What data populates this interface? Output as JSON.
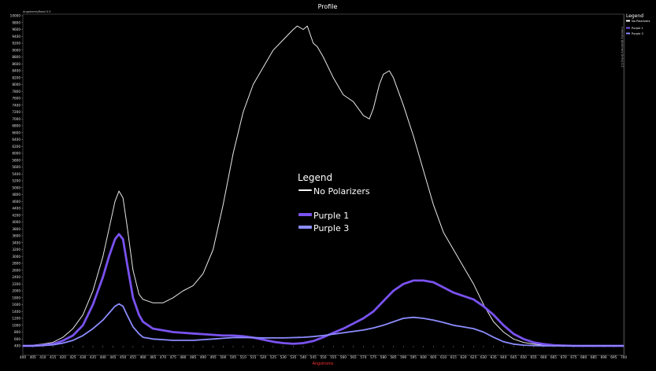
{
  "window": {
    "title": "Profile",
    "status_text": "Angstroms/Read 0.5",
    "right_vertical_text": "Intensity (Arbitrary Units) 4.2"
  },
  "legend_panel": {
    "title": "Legend",
    "items": [
      "No Polarizers",
      "Purple 1",
      "Purple 3"
    ]
  },
  "chart_data": {
    "type": "line",
    "xlabel": "Angstroms",
    "ylabel": "",
    "xlim": [
      400,
      700
    ],
    "ylim": [
      400,
      10000
    ],
    "grid": false,
    "legend_placement": "center",
    "legend_title": "Legend",
    "x_ticks": [
      400,
      405,
      410,
      415,
      420,
      425,
      430,
      435,
      440,
      445,
      450,
      455,
      460,
      465,
      470,
      475,
      480,
      485,
      490,
      495,
      500,
      505,
      510,
      515,
      520,
      525,
      530,
      535,
      540,
      545,
      550,
      555,
      560,
      565,
      570,
      575,
      580,
      585,
      590,
      595,
      600,
      605,
      610,
      615,
      620,
      625,
      630,
      635,
      640,
      645,
      650,
      655,
      660,
      665,
      670,
      675,
      680,
      685,
      690,
      695,
      700
    ],
    "y_ticks": [
      400,
      600,
      800,
      1000,
      1200,
      1400,
      1600,
      1800,
      2000,
      2200,
      2400,
      2600,
      2800,
      3000,
      3200,
      3400,
      3600,
      3800,
      4000,
      4200,
      4400,
      4600,
      4800,
      5000,
      5200,
      5400,
      5600,
      5800,
      6000,
      6200,
      6400,
      6600,
      6800,
      7000,
      7200,
      7400,
      7600,
      7800,
      8000,
      8200,
      8400,
      8600,
      8800,
      9000,
      9200,
      9400,
      9600,
      9800,
      10000
    ],
    "series": [
      {
        "name": "No Polarizers",
        "color": "#e8e8e8",
        "x": [
          400,
          405,
          410,
          415,
          420,
          425,
          430,
          435,
          440,
          443,
          446,
          448,
          450,
          452,
          455,
          458,
          460,
          465,
          470,
          475,
          480,
          485,
          490,
          495,
          500,
          505,
          510,
          515,
          520,
          525,
          530,
          535,
          537,
          540,
          542,
          545,
          547,
          550,
          555,
          560,
          565,
          570,
          573,
          575,
          578,
          580,
          583,
          585,
          590,
          595,
          600,
          605,
          610,
          615,
          620,
          625,
          630,
          635,
          640,
          645,
          650,
          655,
          660,
          665,
          670,
          675,
          680,
          685,
          690,
          695,
          700
        ],
        "values": [
          400,
          420,
          450,
          500,
          650,
          900,
          1300,
          2000,
          3000,
          3800,
          4600,
          4900,
          4700,
          3900,
          2600,
          1900,
          1750,
          1650,
          1650,
          1800,
          2000,
          2150,
          2500,
          3200,
          4500,
          6000,
          7200,
          8000,
          8500,
          9000,
          9300,
          9600,
          9700,
          9600,
          9700,
          9200,
          9100,
          8800,
          8200,
          7700,
          7500,
          7100,
          7000,
          7300,
          8000,
          8300,
          8400,
          8200,
          7400,
          6500,
          5500,
          4500,
          3700,
          3200,
          2700,
          2200,
          1600,
          1100,
          800,
          600,
          500,
          450,
          420,
          410,
          400,
          400,
          400,
          400,
          400,
          400,
          400
        ]
      },
      {
        "name": "Purple 1",
        "color": "#7a52f0",
        "x": [
          400,
          405,
          410,
          415,
          420,
          425,
          430,
          435,
          440,
          443,
          446,
          448,
          450,
          452,
          455,
          458,
          460,
          465,
          470,
          475,
          480,
          485,
          490,
          495,
          500,
          505,
          510,
          515,
          520,
          525,
          530,
          535,
          540,
          545,
          550,
          555,
          560,
          565,
          570,
          575,
          580,
          585,
          590,
          595,
          600,
          605,
          610,
          615,
          620,
          625,
          630,
          635,
          640,
          645,
          650,
          655,
          660,
          665,
          670,
          675,
          680,
          685,
          690,
          695,
          700
        ],
        "values": [
          400,
          400,
          420,
          450,
          550,
          700,
          1000,
          1600,
          2400,
          3000,
          3500,
          3650,
          3500,
          2800,
          1800,
          1300,
          1100,
          900,
          850,
          800,
          780,
          760,
          740,
          720,
          700,
          700,
          680,
          640,
          580,
          520,
          480,
          460,
          480,
          540,
          650,
          780,
          900,
          1050,
          1200,
          1400,
          1700,
          2000,
          2200,
          2300,
          2300,
          2250,
          2100,
          1950,
          1850,
          1750,
          1550,
          1300,
          1000,
          750,
          600,
          500,
          450,
          420,
          410,
          400,
          400,
          400,
          400,
          400,
          400
        ]
      },
      {
        "name": "Purple 3",
        "color": "#8c8cff",
        "x": [
          400,
          405,
          410,
          415,
          420,
          425,
          430,
          435,
          440,
          443,
          446,
          448,
          450,
          452,
          455,
          458,
          460,
          465,
          470,
          475,
          480,
          485,
          490,
          495,
          500,
          505,
          510,
          515,
          520,
          525,
          530,
          535,
          540,
          545,
          550,
          555,
          560,
          565,
          570,
          575,
          580,
          585,
          590,
          595,
          600,
          605,
          610,
          615,
          620,
          625,
          630,
          635,
          640,
          645,
          650,
          655,
          660,
          665,
          670,
          675,
          680,
          685,
          690,
          695,
          700
        ],
        "values": [
          400,
          400,
          410,
          430,
          480,
          560,
          700,
          900,
          1150,
          1350,
          1550,
          1620,
          1550,
          1300,
          950,
          750,
          650,
          600,
          580,
          560,
          560,
          560,
          580,
          600,
          620,
          640,
          640,
          640,
          630,
          630,
          630,
          640,
          650,
          670,
          700,
          740,
          780,
          820,
          860,
          920,
          1000,
          1100,
          1200,
          1230,
          1200,
          1150,
          1080,
          1000,
          950,
          900,
          800,
          650,
          520,
          450,
          420,
          410,
          400,
          400,
          400,
          400,
          400,
          400,
          400,
          400,
          400
        ]
      }
    ]
  }
}
